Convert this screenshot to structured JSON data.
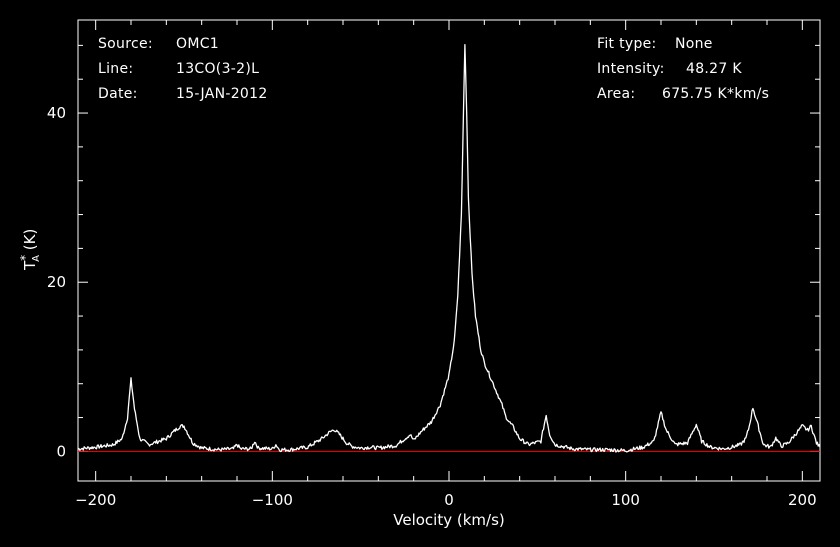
{
  "header": {
    "source_label": "Source:",
    "source_value": "OMC1",
    "line_label": "Line:",
    "line_value": "13CO(3-2)L",
    "date_label": "Date:",
    "date_value": "15-JAN-2012",
    "fit_label": "Fit type:",
    "fit_value": "None",
    "intensity_label": "Intensity:",
    "intensity_value": "48.27 K",
    "area_label": "Area:",
    "area_value": "675.75 K*km/s"
  },
  "ylabel_main": "T",
  "ylabel_sub": "A",
  "ylabel_sup": "*",
  "ylabel_unit": " (K)",
  "colors": {
    "background": "#000000",
    "trace": "#ffffff",
    "baseline": "#ff0000",
    "axes": "#ffffff"
  },
  "chart_data": {
    "type": "line",
    "title": "",
    "xlabel": "Velocity (km/s)",
    "ylabel": "T*A (K)",
    "xlim": [
      -210,
      210
    ],
    "ylim": [
      -3.5,
      51
    ],
    "xticks": [
      -200,
      -100,
      0,
      100,
      200
    ],
    "xtick_labels": [
      "−200",
      "−100",
      "0",
      "100",
      "200"
    ],
    "yticks": [
      0,
      20,
      40
    ],
    "ytick_labels": [
      "0",
      "20",
      "40"
    ],
    "grid": false,
    "baseline_value": 0,
    "series": [
      {
        "x": [
          -210,
          -200,
          -190,
          -185,
          -182,
          -180,
          -178,
          -175,
          -170,
          -160,
          -155,
          -152,
          -150,
          -148,
          -145,
          -140,
          -130,
          -122,
          -120,
          -118,
          -112,
          -110,
          -108,
          -100,
          -98,
          -96,
          -90,
          -80,
          -72,
          -68,
          -65,
          -62,
          -58,
          -55,
          -50,
          -45,
          -40,
          -30,
          -25,
          -22,
          -20,
          -18,
          -15,
          -10,
          -5,
          0,
          3,
          5,
          7,
          8,
          9,
          10,
          11,
          13,
          15,
          18,
          20,
          25,
          30,
          32,
          34,
          36,
          40,
          45,
          52,
          55,
          57,
          60,
          70,
          80,
          90,
          100,
          110,
          116,
          120,
          123,
          128,
          135,
          140,
          143,
          148,
          155,
          160,
          165,
          168,
          170,
          172,
          175,
          178,
          182,
          185,
          188,
          192,
          196,
          200,
          203,
          205,
          208,
          210
        ],
        "y": [
          0.3,
          0.5,
          0.8,
          1.5,
          4.0,
          8.5,
          5.0,
          1.5,
          0.8,
          1.5,
          2.5,
          3.0,
          3.0,
          2.2,
          1.0,
          0.4,
          0.2,
          0.3,
          0.8,
          0.3,
          0.3,
          1.2,
          0.4,
          0.3,
          0.8,
          0.2,
          0.2,
          0.5,
          1.5,
          2.2,
          2.6,
          2.0,
          1.0,
          0.6,
          0.4,
          0.5,
          0.4,
          0.7,
          1.5,
          2.0,
          1.3,
          1.8,
          2.5,
          3.5,
          5.5,
          9.0,
          13.0,
          18.5,
          28.0,
          38.0,
          48.27,
          40.0,
          30.0,
          21.0,
          16.0,
          12.0,
          10.5,
          8.0,
          5.5,
          4.2,
          3.5,
          3.0,
          1.5,
          0.8,
          1.2,
          4.3,
          2.0,
          0.8,
          0.3,
          0.2,
          0.2,
          0.1,
          0.5,
          1.2,
          4.6,
          2.5,
          0.8,
          1.0,
          3.2,
          1.2,
          0.5,
          0.3,
          0.5,
          0.8,
          1.5,
          3.0,
          5.2,
          3.0,
          0.8,
          0.5,
          1.6,
          0.6,
          1.0,
          2.0,
          3.0,
          2.5,
          3.0,
          1.0,
          0.5
        ]
      }
    ]
  }
}
